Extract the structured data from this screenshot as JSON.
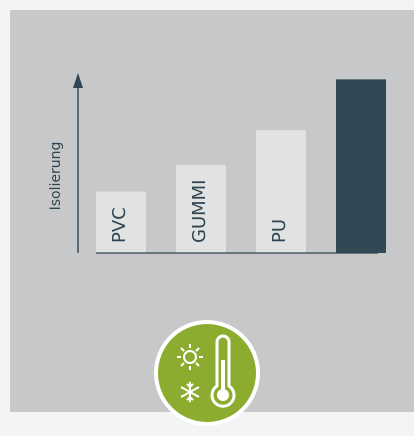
{
  "chart_data": {
    "type": "bar",
    "categories": [
      "PVC",
      "GUMMI",
      "PU",
      ""
    ],
    "values": [
      2.3,
      3.3,
      4.6,
      6.5
    ],
    "ylabel": "Isolierung",
    "xlabel": "",
    "title": "",
    "ylim": [
      0,
      7
    ],
    "grid": false,
    "colors": {
      "bar": "#e1e2e2",
      "highlight_bar": "#324955",
      "axis": "#2f4552",
      "background": "#c6c8ca",
      "label": "#2f4552"
    }
  },
  "badge": {
    "icon": "thermometer-sun-snow-icon",
    "circle_color": "#8cac2f",
    "ring_color": "#ffffff"
  }
}
